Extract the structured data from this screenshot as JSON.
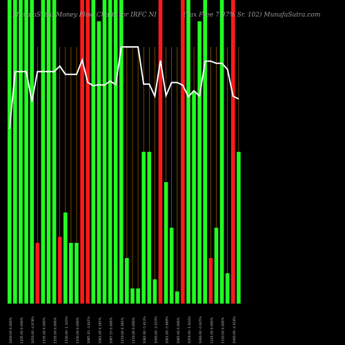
{
  "chart_data": {
    "type": "bar",
    "title_left": "MunafaSutra Money Flow Charts for IRFC NI",
    "title_right": "(Tax Free    7.07% Sr. 102) MunafaSutra.com",
    "up_color": "#22ff22",
    "down_color": "#ff1a1a",
    "line_color": "#ffffff",
    "grid_color": "#c47a00",
    "categories": [
      "1000.00 0.000%",
      "1105.00 0.000%",
      "1105.00 0.000%",
      "1105.00 0.000%",
      "1050.00 -4.978%",
      "1105.00 5.238%",
      "1105.00 0.000%",
      "1105.00 0.000%",
      "1105.00 0.000%",
      "1115.00 0.905%",
      "1100.00 -1.345%",
      "1100.00 0.000%",
      "1100.00 0.000%",
      "1126.10 2.373%",
      "1085.10 -3.641%",
      "1079.00 -0.562%",
      "1081.00 0.185%",
      "1080.00 -0.093%",
      "1087.55 0.699%",
      "1081.00 -0.602%",
      "1150.00 6.383%",
      "1150.00 0.000%",
      "1150.00 0.000%",
      "1150.00 0.000%",
      "1082.00 -5.913%",
      "1082.00 0.000%",
      "1060.00 -2.033%",
      "1125.00 6.132%",
      "1061.00 -5.689%",
      "1085.00 2.262%",
      "1085.00 0.000%",
      "1080.00 -0.461%",
      "1059.00 -1.944%",
      "1070.00 1.039%",
      "1060.00 -0.935%",
      "1124.00 6.038%",
      "1124.00 0.000%",
      "1120.00 -0.356%",
      "1120.00 0.000%",
      "1109.00 -0.982%",
      "1060.00 -4.418%",
      "1055.00 -0.472%"
    ],
    "directions": [
      "up",
      "up",
      "up",
      "up",
      "up",
      "down",
      "up",
      "up",
      "up",
      "down",
      "up",
      "up",
      "up",
      "down",
      "down",
      "up",
      "up",
      "up",
      "up",
      "up",
      "up",
      "up",
      "up",
      "up",
      "up",
      "up",
      "up",
      "down",
      "up",
      "up",
      "up",
      "down",
      "up",
      "up",
      "up",
      "up",
      "down",
      "up",
      "up",
      "up",
      "down",
      "up"
    ],
    "volumes": [
      100,
      100,
      100,
      100,
      100,
      20,
      100,
      100,
      100,
      22,
      30,
      20,
      20,
      100,
      100,
      100,
      93,
      100,
      100,
      100,
      100,
      15,
      5,
      5,
      50,
      50,
      8,
      100,
      40,
      25,
      4,
      100,
      100,
      70,
      93,
      100,
      15,
      25,
      100,
      10,
      100,
      50
    ],
    "volume_ylim": [
      0,
      100
    ],
    "price_ylim": [
      1000,
      1150
    ],
    "ticks": [
      0,
      2,
      4,
      6,
      8,
      10,
      12,
      14,
      16,
      18,
      20,
      22,
      24,
      26,
      28,
      30,
      32,
      34,
      36,
      38,
      40
    ]
  }
}
